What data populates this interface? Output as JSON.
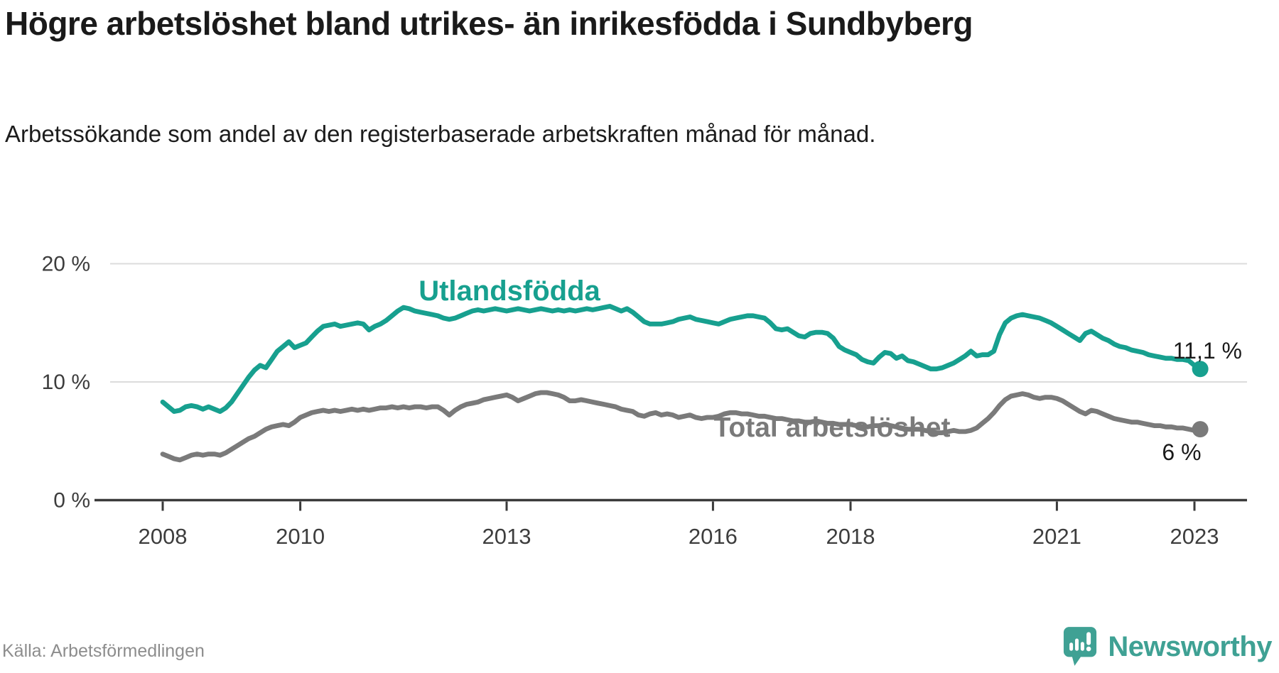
{
  "header": {
    "title": "Högre arbetslöshet bland utrikes- än inrikesfödda i Sundbyberg",
    "subtitle": "Arbetssökande som andel av den registerbaserade arbetskraften månad för månad."
  },
  "source": {
    "label": "Källa: Arbetsförmedlingen"
  },
  "branding": {
    "name": "Newsworthy",
    "icon": "newsworthy-speech-bubble-chart-icon"
  },
  "colors": {
    "accent_teal": "#17a08f",
    "series_gray": "#7a7a7a",
    "gridline": "#dcdcdc",
    "axis": "#3a3a3a",
    "text": "#1a1a1a",
    "brand_teal": "#3fa194"
  },
  "chart_data": {
    "type": "line",
    "x_unit": "month",
    "x_start": "2008-01",
    "x_end": "2023-02",
    "xticks": [
      2008,
      2010,
      2013,
      2016,
      2018,
      2021,
      2023
    ],
    "xtick_labels": [
      "2008",
      "2010",
      "2013",
      "2016",
      "2018",
      "2021",
      "2023"
    ],
    "yticks": [
      0,
      10,
      20
    ],
    "ytick_labels": [
      "0 %",
      "10 %",
      "20 %"
    ],
    "ylim": [
      0,
      21.5
    ],
    "grid": "horizontal",
    "legend_position": "inline-labels",
    "series": [
      {
        "id": "utlandsfodda",
        "name": "Utlandsfödda",
        "color": "#17a08f",
        "end_label": "11,1 %",
        "end_value": 11.1,
        "values": [
          8.3,
          7.9,
          7.5,
          7.6,
          7.9,
          8.0,
          7.9,
          7.7,
          7.9,
          7.7,
          7.5,
          7.8,
          8.3,
          9.0,
          9.7,
          10.4,
          11.0,
          11.4,
          11.2,
          11.9,
          12.6,
          13.0,
          13.4,
          12.9,
          13.1,
          13.3,
          13.8,
          14.3,
          14.7,
          14.8,
          14.9,
          14.7,
          14.8,
          14.9,
          15.0,
          14.9,
          14.4,
          14.7,
          14.9,
          15.2,
          15.6,
          16.0,
          16.3,
          16.2,
          16.0,
          15.9,
          15.8,
          15.7,
          15.6,
          15.4,
          15.3,
          15.4,
          15.6,
          15.8,
          16.0,
          16.1,
          16.0,
          16.1,
          16.2,
          16.1,
          16.0,
          16.1,
          16.2,
          16.1,
          16.0,
          16.1,
          16.2,
          16.1,
          16.0,
          16.1,
          16.0,
          16.1,
          16.0,
          16.1,
          16.2,
          16.1,
          16.2,
          16.3,
          16.4,
          16.2,
          16.0,
          16.2,
          15.9,
          15.5,
          15.1,
          14.9,
          14.9,
          14.9,
          15.0,
          15.1,
          15.3,
          15.4,
          15.5,
          15.3,
          15.2,
          15.1,
          15.0,
          14.9,
          15.1,
          15.3,
          15.4,
          15.5,
          15.6,
          15.6,
          15.5,
          15.4,
          15.0,
          14.5,
          14.4,
          14.5,
          14.2,
          13.9,
          13.8,
          14.1,
          14.2,
          14.2,
          14.1,
          13.7,
          13.0,
          12.7,
          12.5,
          12.3,
          11.9,
          11.7,
          11.6,
          12.1,
          12.5,
          12.4,
          12.0,
          12.2,
          11.8,
          11.7,
          11.5,
          11.3,
          11.1,
          11.1,
          11.2,
          11.4,
          11.6,
          11.9,
          12.2,
          12.6,
          12.2,
          12.3,
          12.3,
          12.6,
          14.0,
          15.0,
          15.4,
          15.6,
          15.7,
          15.6,
          15.5,
          15.4,
          15.2,
          15.0,
          14.7,
          14.4,
          14.1,
          13.8,
          13.5,
          14.1,
          14.3,
          14.0,
          13.7,
          13.5,
          13.2,
          13.0,
          12.9,
          12.7,
          12.6,
          12.5,
          12.3,
          12.2,
          12.1,
          12.0,
          12.0,
          11.9,
          11.9,
          11.8,
          11.4,
          11.1
        ]
      },
      {
        "id": "total-arbetsloshet",
        "name": "Total arbetslöshet",
        "color": "#7a7a7a",
        "end_label": "6 %",
        "end_value": 6.0,
        "values": [
          3.9,
          3.7,
          3.5,
          3.4,
          3.6,
          3.8,
          3.9,
          3.8,
          3.9,
          3.9,
          3.8,
          4.0,
          4.3,
          4.6,
          4.9,
          5.2,
          5.4,
          5.7,
          6.0,
          6.2,
          6.3,
          6.4,
          6.3,
          6.6,
          7.0,
          7.2,
          7.4,
          7.5,
          7.6,
          7.5,
          7.6,
          7.5,
          7.6,
          7.7,
          7.6,
          7.7,
          7.6,
          7.7,
          7.8,
          7.8,
          7.9,
          7.8,
          7.9,
          7.8,
          7.9,
          7.9,
          7.8,
          7.9,
          7.9,
          7.6,
          7.2,
          7.6,
          7.9,
          8.1,
          8.2,
          8.3,
          8.5,
          8.6,
          8.7,
          8.8,
          8.9,
          8.7,
          8.4,
          8.6,
          8.8,
          9.0,
          9.1,
          9.1,
          9.0,
          8.9,
          8.7,
          8.4,
          8.4,
          8.5,
          8.4,
          8.3,
          8.2,
          8.1,
          8.0,
          7.9,
          7.7,
          7.6,
          7.5,
          7.2,
          7.1,
          7.3,
          7.4,
          7.2,
          7.3,
          7.2,
          7.0,
          7.1,
          7.2,
          7.0,
          6.9,
          7.0,
          7.0,
          7.1,
          7.3,
          7.4,
          7.4,
          7.3,
          7.3,
          7.2,
          7.1,
          7.1,
          7.0,
          6.9,
          6.9,
          6.8,
          6.7,
          6.7,
          6.6,
          6.6,
          6.7,
          6.6,
          6.5,
          6.5,
          6.4,
          6.4,
          6.4,
          6.3,
          6.2,
          6.2,
          6.3,
          6.3,
          6.4,
          6.3,
          6.2,
          6.1,
          6.0,
          6.0,
          6.0,
          5.9,
          5.8,
          5.7,
          5.7,
          5.8,
          5.9,
          5.8,
          5.8,
          5.9,
          6.1,
          6.5,
          6.9,
          7.4,
          8.0,
          8.5,
          8.8,
          8.9,
          9.0,
          8.9,
          8.7,
          8.6,
          8.7,
          8.7,
          8.6,
          8.4,
          8.1,
          7.8,
          7.5,
          7.3,
          7.6,
          7.5,
          7.3,
          7.1,
          6.9,
          6.8,
          6.7,
          6.6,
          6.6,
          6.5,
          6.4,
          6.3,
          6.3,
          6.2,
          6.2,
          6.1,
          6.1,
          6.0,
          5.9,
          6.0
        ]
      }
    ]
  }
}
